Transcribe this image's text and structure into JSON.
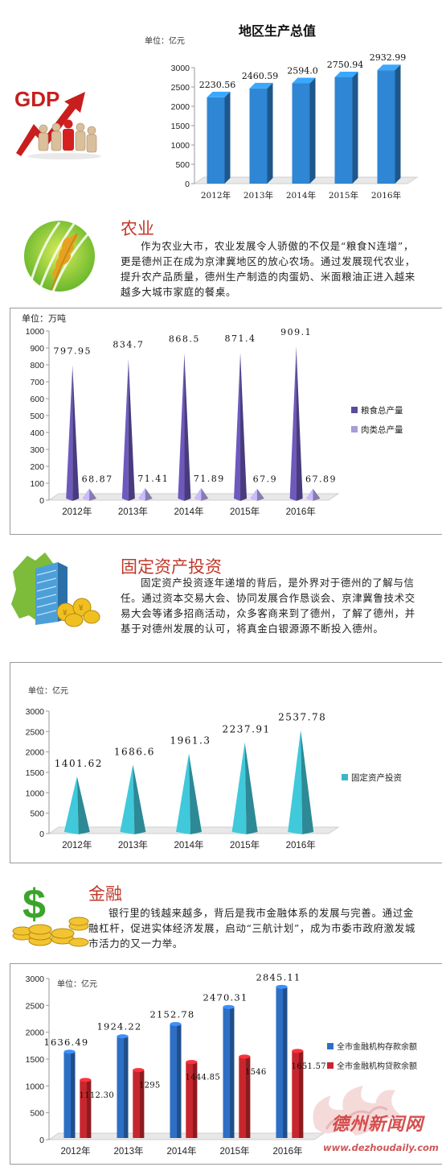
{
  "sections": [
    {
      "title": "农业",
      "body": "作为农业大市，农业发展令人骄傲的不仅是“粮食N连增”，更是德州正在成为京津冀地区的放心农场。通过发展现代农业，提升农产品质量，德州生产制造的肉蛋奶、米面粮油正进入越来越多大城市家庭的餐桌。"
    },
    {
      "title": "固定资产投资",
      "body": "固定资产投资逐年递增的背后，是外界对于德州的了解与信任。通过资本交易大会、协同发展合作恳谈会、京津冀鲁技术交易大会等诸多招商活动，众多客商来到了德州，了解了德州，并基于对德州发展的认可，将真金白银源源不断投入德州。"
    },
    {
      "title": "金融",
      "body": "银行里的钱越来越多，背后是我市金融体系的发展与完善。通过金融杠杆，促进实体经济发展，启动“三航计划”，成为市委市政府激发城市活力的又一力举。"
    }
  ],
  "icons": {
    "gdp": "gdp-growth-icon",
    "gdp_text": "GDP",
    "agri": "wheat-icon",
    "invest": "building-map-icon",
    "finance": "dollar-coins-icon"
  },
  "watermark": {
    "name": "德州新闻网",
    "url": "www.dezhoudaily.com"
  },
  "colors": {
    "gdp_bar": "#2e86d4",
    "grain": "#5b4a9e",
    "meat": "#a99bd6",
    "invest": "#3ab7c6",
    "deposit": "#2d6fc4",
    "loan": "#c8262e",
    "title_red": "#c0392b"
  },
  "chart_data": [
    {
      "type": "bar",
      "title": "地区生产总值",
      "ylabel": "单位：亿元",
      "categories": [
        "2012年",
        "2013年",
        "2014年",
        "2015年",
        "2016年"
      ],
      "values": [
        2230.56,
        2460.59,
        2594.0,
        2750.94,
        2932.99
      ],
      "value_labels": [
        "2230.56",
        "2460.59",
        "2594.0",
        "2750.94",
        "2932.99"
      ],
      "yticks": [
        "0",
        "500",
        "1000",
        "1500",
        "2000",
        "2500",
        "3000"
      ],
      "ylim": [
        0,
        3000
      ],
      "grid": false
    },
    {
      "type": "bar",
      "ylabel": "单位：万吨",
      "categories": [
        "2012年",
        "2013年",
        "2014年",
        "2015年",
        "2016年"
      ],
      "series": [
        {
          "name": "粮食总产量",
          "values": [
            797.95,
            834.7,
            868.5,
            871.4,
            909.1
          ],
          "labels": [
            "797.95",
            "834.7",
            "868.5",
            "871.4",
            "909.1"
          ]
        },
        {
          "name": "肉类总产量",
          "values": [
            68.87,
            71.41,
            71.89,
            67.9,
            67.89
          ],
          "labels": [
            "68.87",
            "71.41",
            "71.89",
            "67.9",
            "67.89"
          ]
        }
      ],
      "yticks": [
        "0",
        "100",
        "200",
        "300",
        "400",
        "500",
        "600",
        "700",
        "800",
        "900",
        "1000"
      ],
      "ylim": [
        0,
        1000
      ],
      "legend": "right"
    },
    {
      "type": "bar",
      "ylabel": "单位：亿元",
      "categories": [
        "2012年",
        "2013年",
        "2014年",
        "2015年",
        "2016年"
      ],
      "series": [
        {
          "name": "固定资产投资",
          "values": [
            1401.62,
            1686.6,
            1961.3,
            2237.91,
            2537.78
          ],
          "labels": [
            "1401.62",
            "1686.6",
            "1961.3",
            "2237.91",
            "2537.78"
          ]
        }
      ],
      "yticks": [
        "0",
        "500",
        "1000",
        "1500",
        "2000",
        "2500",
        "3000"
      ],
      "ylim": [
        0,
        3000
      ],
      "legend": "right"
    },
    {
      "type": "bar",
      "ylabel": "单位：亿元",
      "categories": [
        "2012年",
        "2013年",
        "2014年",
        "2015年",
        "2016年"
      ],
      "series": [
        {
          "name": "全市金融机构存款余额",
          "values": [
            1636.49,
            1924.22,
            2152.78,
            2470.31,
            2845.11
          ],
          "labels": [
            "1636.49",
            "1924.22",
            "2152.78",
            "2470.31",
            "2845.11"
          ]
        },
        {
          "name": "全市金融机构贷款余额",
          "values": [
            1112.3,
            1295,
            1444.85,
            1546,
            1651.57
          ],
          "labels": [
            "1112.30",
            "1295",
            "1444.85",
            "1546",
            "1651.57"
          ]
        }
      ],
      "yticks": [
        "0",
        "500",
        "1000",
        "1500",
        "2000",
        "2500",
        "3000"
      ],
      "ylim": [
        0,
        3000
      ],
      "legend": "right"
    }
  ]
}
